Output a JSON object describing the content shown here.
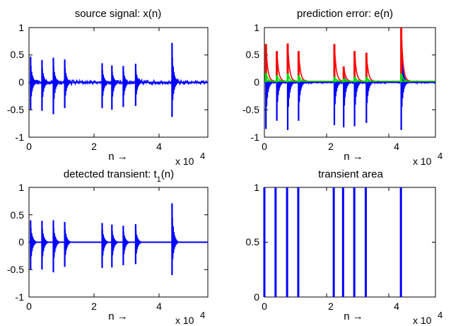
{
  "chart_data": [
    {
      "type": "line",
      "title": "source signal: x(n)",
      "xlabel": "n →",
      "x_multiplier": "x 10",
      "x_multiplier_exp": "4",
      "xlim": [
        0,
        55000
      ],
      "ylim": [
        -1,
        1
      ],
      "xticks": [
        0,
        20000,
        40000
      ],
      "xtick_labels": [
        "0",
        "2",
        "4"
      ],
      "yticks": [
        -1,
        -0.5,
        0,
        0.5,
        1
      ],
      "ytick_labels": [
        "-1",
        "-0.5",
        "0",
        "0.5",
        "1"
      ],
      "grid": false,
      "series": [
        {
          "kind": "transients",
          "color": "#0000ff",
          "events": [
            {
              "x": 500,
              "top": 0.47,
              "bottom": -0.5
            },
            {
              "x": 4000,
              "top": 0.41,
              "bottom": -0.52
            },
            {
              "x": 7500,
              "top": 0.45,
              "bottom": -0.58
            },
            {
              "x": 11000,
              "top": 0.42,
              "bottom": -0.47
            },
            {
              "x": 22500,
              "top": 0.35,
              "bottom": -0.47
            },
            {
              "x": 25500,
              "top": 0.31,
              "bottom": -0.5
            },
            {
              "x": 29000,
              "top": 0.3,
              "bottom": -0.45
            },
            {
              "x": 32800,
              "top": 0.34,
              "bottom": -0.43
            },
            {
              "x": 44000,
              "top": 0.72,
              "bottom": -0.63
            }
          ],
          "baseline_noise": 0.08,
          "end_x": 55000
        }
      ]
    },
    {
      "type": "line",
      "title": "prediction error: e(n)",
      "xlabel": "n →",
      "x_multiplier": "x 10",
      "x_multiplier_exp": "4",
      "xlim": [
        0,
        55000
      ],
      "ylim": [
        -1,
        1
      ],
      "xticks": [
        0,
        20000,
        40000
      ],
      "xtick_labels": [
        "0",
        "2",
        "4"
      ],
      "yticks": [
        -1,
        -0.5,
        0,
        0.5,
        1
      ],
      "ytick_labels": [
        "-1",
        "-0.5",
        "0",
        "0.5",
        "1"
      ],
      "grid": false,
      "series": [
        {
          "kind": "transients",
          "color": "#0000ff",
          "events": [
            {
              "x": 500,
              "top": 0.1,
              "bottom": -0.85
            },
            {
              "x": 4000,
              "top": 0.08,
              "bottom": -0.7
            },
            {
              "x": 7500,
              "top": 0.08,
              "bottom": -0.87
            },
            {
              "x": 11000,
              "top": 0.05,
              "bottom": -0.7
            },
            {
              "x": 22500,
              "top": 0.06,
              "bottom": -0.78
            },
            {
              "x": 25500,
              "top": 0.22,
              "bottom": -0.82
            },
            {
              "x": 29000,
              "top": 0.05,
              "bottom": -0.8
            },
            {
              "x": 32800,
              "top": 0.05,
              "bottom": -0.74
            },
            {
              "x": 44000,
              "top": 0.98,
              "bottom": -0.87
            }
          ],
          "baseline_noise": 0.04,
          "end_x": 55000
        },
        {
          "kind": "envelope",
          "color": "#ff0000",
          "events": [
            {
              "x": 500,
              "top": 0.7
            },
            {
              "x": 4000,
              "top": 0.57
            },
            {
              "x": 7500,
              "top": 0.71
            },
            {
              "x": 11000,
              "top": 0.57
            },
            {
              "x": 22500,
              "top": 0.7
            },
            {
              "x": 25500,
              "top": 0.29
            },
            {
              "x": 29000,
              "top": 0.57
            },
            {
              "x": 32800,
              "top": 0.54
            },
            {
              "x": 44000,
              "top": 1.0
            }
          ],
          "end_x": 55000
        },
        {
          "kind": "envelope",
          "color": "#00dd00",
          "events": [
            {
              "x": 500,
              "top": 0.17
            },
            {
              "x": 4000,
              "top": 0.13
            },
            {
              "x": 7500,
              "top": 0.16
            },
            {
              "x": 11000,
              "top": 0.13
            },
            {
              "x": 22500,
              "top": 0.1
            },
            {
              "x": 25500,
              "top": 0.07
            },
            {
              "x": 29000,
              "top": 0.1
            },
            {
              "x": 32800,
              "top": 0.1
            },
            {
              "x": 44000,
              "top": 0.16
            }
          ],
          "end_x": 55000
        }
      ]
    },
    {
      "type": "line",
      "title": "detected transient: t",
      "title_sub": "1",
      "title_tail": "(n)",
      "xlabel": "n →",
      "x_multiplier": "x 10",
      "x_multiplier_exp": "4",
      "xlim": [
        0,
        55000
      ],
      "ylim": [
        -1,
        1
      ],
      "xticks": [
        0,
        20000,
        40000
      ],
      "xtick_labels": [
        "0",
        "2",
        "4"
      ],
      "yticks": [
        -1,
        -0.5,
        0,
        0.5,
        1
      ],
      "ytick_labels": [
        "-1",
        "-0.5",
        "0",
        "0.5",
        "1"
      ],
      "grid": false,
      "series": [
        {
          "kind": "transients",
          "color": "#0000ff",
          "events": [
            {
              "x": 500,
              "top": 0.4,
              "bottom": -0.5
            },
            {
              "x": 4000,
              "top": 0.39,
              "bottom": -0.5
            },
            {
              "x": 7500,
              "top": 0.4,
              "bottom": -0.55
            },
            {
              "x": 11000,
              "top": 0.37,
              "bottom": -0.45
            },
            {
              "x": 22500,
              "top": 0.35,
              "bottom": -0.47
            },
            {
              "x": 25500,
              "top": 0.32,
              "bottom": -0.46
            },
            {
              "x": 29000,
              "top": 0.3,
              "bottom": -0.42
            },
            {
              "x": 32800,
              "top": 0.33,
              "bottom": -0.4
            },
            {
              "x": 44000,
              "top": 0.71,
              "bottom": -0.6
            }
          ],
          "baseline_noise": 0.0,
          "end_x": 55000
        }
      ]
    },
    {
      "type": "line",
      "title": "transient area",
      "xlabel": "n →",
      "x_multiplier": "x 10",
      "x_multiplier_exp": "4",
      "xlim": [
        0,
        55000
      ],
      "ylim": [
        0,
        1
      ],
      "xticks": [
        0,
        20000,
        40000
      ],
      "xtick_labels": [
        "0",
        "2",
        "4"
      ],
      "yticks": [
        0,
        0.5,
        1
      ],
      "ytick_labels": [
        "0",
        "0.5",
        "1"
      ],
      "grid": false,
      "series": [
        {
          "kind": "pulses",
          "color": "#0000ff",
          "value": 1,
          "positions": [
            0,
            3600,
            7300,
            10900,
            22300,
            25300,
            28900,
            32600,
            43900
          ]
        }
      ]
    }
  ]
}
